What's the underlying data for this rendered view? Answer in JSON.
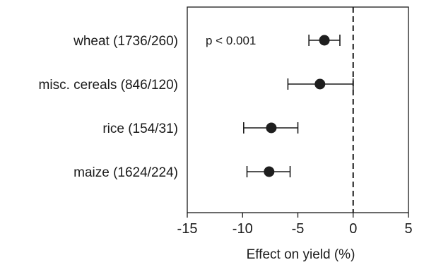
{
  "chart_data": {
    "type": "scatter",
    "subtype": "forest-plot",
    "xlabel": "Effect on yield (%)",
    "ylabel": "",
    "xlim": [
      -15,
      5
    ],
    "xticks": [
      -15,
      -10,
      -5,
      0,
      5
    ],
    "xtick_labels": [
      "-15",
      "-10",
      "-5",
      "0",
      "5"
    ],
    "grid": false,
    "reference_line": {
      "x": 0,
      "style": "dashed"
    },
    "categories": [
      "wheat (1736/260)",
      "misc. cereals (846/120)",
      "rice (154/31)",
      "maize (1624/224)"
    ],
    "series": [
      {
        "estimate": [
          -2.6,
          -3.0,
          -7.4,
          -7.6
        ],
        "ci_low": [
          -4.0,
          -5.9,
          -9.9,
          -9.6
        ],
        "ci_high": [
          -1.2,
          0.0,
          -5.0,
          -5.7
        ]
      }
    ],
    "annotations": [
      {
        "text": "p < 0.001",
        "row": 0
      }
    ],
    "colors": {
      "marker": "#1e1e1e",
      "line": "#1a1a1a",
      "background": "#ffffff"
    }
  }
}
